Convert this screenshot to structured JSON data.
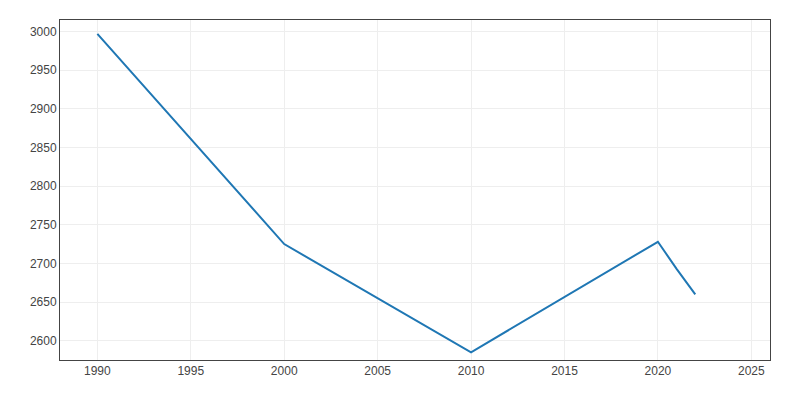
{
  "chart_data": {
    "type": "line",
    "x": [
      1990,
      2000,
      2010,
      2020,
      2021,
      2022
    ],
    "values": [
      2997,
      2725,
      2585,
      2728,
      2693,
      2660
    ],
    "xlim": [
      1988,
      2026
    ],
    "ylim": [
      2575,
      3015
    ],
    "xticks": [
      1990,
      1995,
      2000,
      2005,
      2010,
      2015,
      2020,
      2025
    ],
    "yticks": [
      2600,
      2650,
      2700,
      2750,
      2800,
      2850,
      2900,
      2950,
      3000
    ],
    "grid": true
  }
}
